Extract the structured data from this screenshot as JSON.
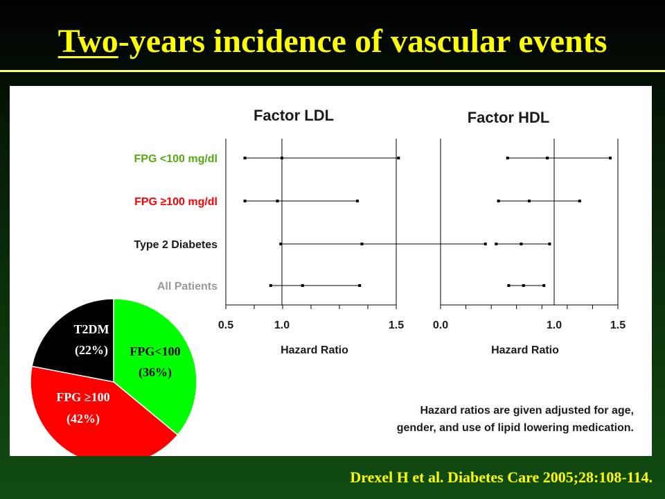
{
  "title": {
    "part_underlined": "Two",
    "part_rest": "-years incidence of vascular events"
  },
  "citation": "Drexel H et al. Diabetes Care 2005;28:108-114.",
  "footnote": {
    "line1": "Hazard ratios are given adjusted for age,",
    "line2": "gender, and use of lipid lowering medication."
  },
  "colors": {
    "title": "#ffff00",
    "fpg_lt_100": "#55aa11",
    "fpg_ge_100": "#ff0000",
    "type2_diabetes": "#1a1a1a",
    "all_patients": "#999999",
    "pie_green": "#00ff00",
    "pie_red": "#ff0000",
    "pie_black": "#000000"
  },
  "chart_data": [
    {
      "type": "forest",
      "title": "Factor LDL",
      "xlabel": "Hazard Ratio",
      "x_tick_labels": [
        "0.5",
        "1.0",
        "1.5"
      ],
      "xlim": [
        0.5,
        1.5
      ],
      "reference_line": 1.0,
      "rows": [
        {
          "label": "FPG <100 mg/dl",
          "estimate": 1.0,
          "ci": [
            0.67,
            1.51
          ]
        },
        {
          "label": "FPG ≥100 mg/dl",
          "estimate": 0.96,
          "ci": [
            0.67,
            1.33
          ]
        },
        {
          "label": "Type 2 Diabetes",
          "estimate": 1.35,
          "ci": [
            0.99,
            1.89
          ]
        },
        {
          "label": "All Patients",
          "estimate": 1.09,
          "ci": [
            0.9,
            1.34
          ]
        }
      ]
    },
    {
      "type": "forest",
      "title": "Factor HDL",
      "xlabel": "Hazard Ratio",
      "x_tick_labels": [
        "0.0",
        "1.0",
        "1.5"
      ],
      "xlim": [
        0.0,
        1.5
      ],
      "reference_line": 1.0,
      "rows": [
        {
          "label": "FPG <100 mg/dl",
          "estimate": 0.94,
          "ci": [
            0.59,
            1.44
          ]
        },
        {
          "label": "FPG ≥100 mg/dl",
          "estimate": 0.78,
          "ci": [
            0.51,
            1.2
          ]
        },
        {
          "label": "Type 2 Diabetes",
          "estimate": 0.71,
          "ci": [
            0.49,
            0.96
          ]
        },
        {
          "label": "All Patients",
          "estimate": 0.73,
          "ci": [
            0.6,
            0.91
          ]
        }
      ]
    },
    {
      "type": "pie",
      "slices": [
        {
          "label": "FPG<100",
          "pct_label": "(36%)",
          "value": 36,
          "color": "#00ff00"
        },
        {
          "label": "FPG ≥100",
          "pct_label": "(42%)",
          "value": 42,
          "color": "#ff0000"
        },
        {
          "label": "T2DM",
          "pct_label": "(22%)",
          "value": 22,
          "color": "#000000"
        }
      ]
    }
  ],
  "row_labels": [
    "FPG <100 mg/dl",
    "FPG ≥100 mg/dl",
    "Type 2 Diabetes",
    "All Patients"
  ]
}
